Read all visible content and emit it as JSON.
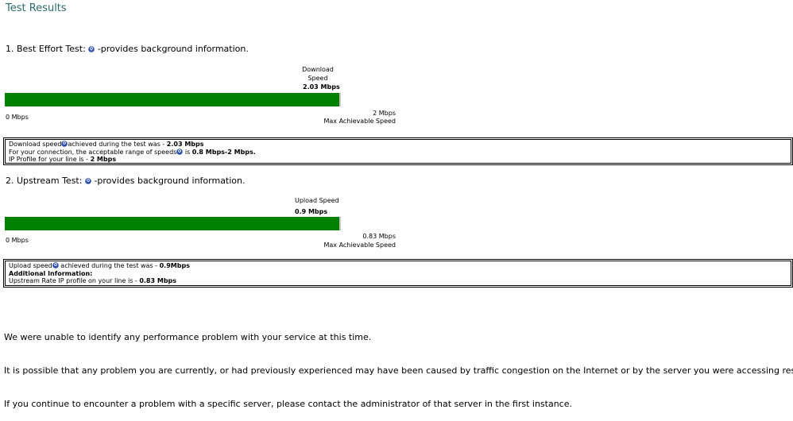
{
  "header": {
    "title": "Test Results"
  },
  "tests": [
    {
      "heading": "1. Best Effort Test:",
      "info": "-provides background information.",
      "gauge": {
        "label": "Download Speed",
        "value": "2.03 Mbps",
        "min": "0 Mbps",
        "max": "2 Mbps",
        "max_label": "Max Achievable Speed"
      },
      "details": [
        {
          "text": "Download speed",
          "text2": "achieved during the test was - ",
          "bold": "2.03 Mbps"
        },
        {
          "text": "For your connection, the acceptable range of speeds",
          "text2": " is ",
          "bold": "0.8 Mbps-2 Mbps."
        },
        {
          "text": "IP Profile for your line is - ",
          "bold": "2 Mbps"
        }
      ]
    },
    {
      "heading": "2. Upstream Test:",
      "info": "-provides background information.",
      "gauge": {
        "label": "Upload Speed",
        "value": "0.9 Mbps",
        "min": "0 Mbps",
        "max": "0.83 Mbps",
        "max_label": "Max Achievable Speed"
      },
      "details": [
        {
          "text": "Upload speed",
          "text2": " achieved during the test was - ",
          "bold": "0.9Mbps"
        },
        {
          "bold": "Additional Information:"
        },
        {
          "text": "Upstream Rate IP profile on your line is - ",
          "bold": "0.83 Mbps"
        }
      ]
    }
  ],
  "footer": [
    "We were unable to identify any performance problem with your service at this time.",
    "It is possible that any problem you are currently, or had previously experienced may have been caused by traffic congestion on the Internet or by the server you were accessing respo",
    "If you continue to encounter a problem with a specific server, please contact the administrator of that server in the first instance."
  ]
}
